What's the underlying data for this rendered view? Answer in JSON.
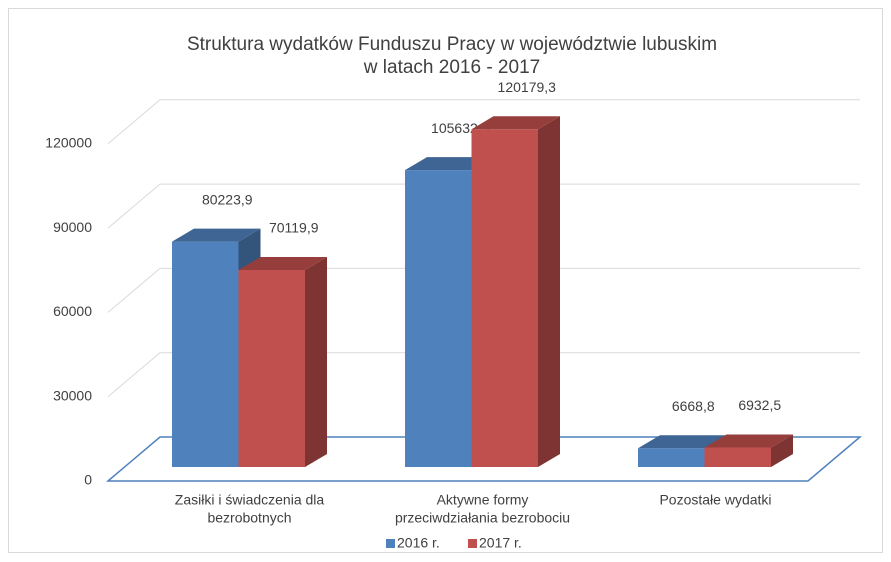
{
  "chart_data": {
    "type": "bar3d",
    "title": [
      "Struktura wydatków Funduszu Pracy w województwie lubuskim",
      "w latach 2016 - 2017"
    ],
    "categories": [
      [
        "Zasiłki i świadczenia dla",
        "bezrobotnych"
      ],
      [
        "Aktywne formy",
        "przeciwdziałania bezrobociu"
      ],
      [
        "Pozostałe wydatki"
      ]
    ],
    "series": [
      {
        "name": "2016 r.",
        "color": "#4f81bd",
        "values": [
          80223.9,
          105632.5,
          6668.8
        ],
        "value_labels": [
          "80223,9",
          "105632,5",
          "6668,8"
        ]
      },
      {
        "name": "2017 r.",
        "color": "#c0504d",
        "values": [
          70119.9,
          120179.3,
          6932.5
        ],
        "value_labels": [
          "70119,9",
          "120179,3",
          "6932,5"
        ]
      }
    ],
    "ylim": [
      0,
      150000
    ],
    "yticks": [
      0,
      30000,
      60000,
      90000,
      120000
    ],
    "grid": true,
    "legend": "bottom"
  }
}
